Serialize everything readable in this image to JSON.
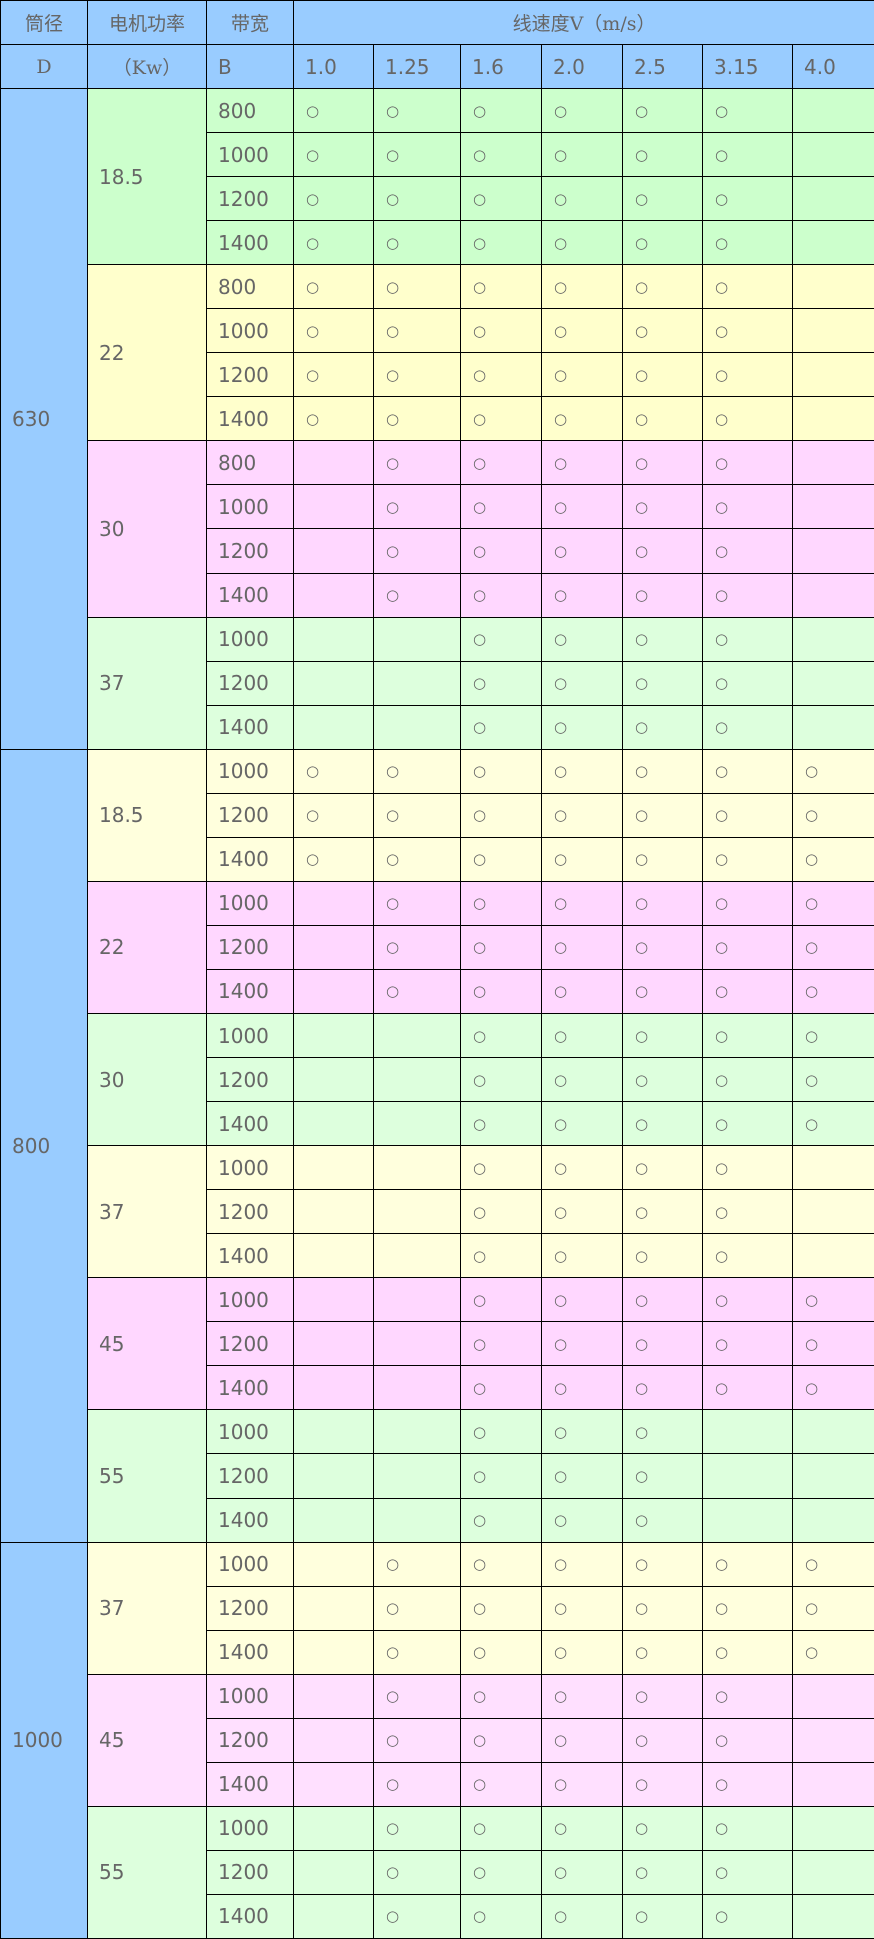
{
  "header": {
    "diameter": [
      "筒径",
      "D"
    ],
    "power": [
      "电机功率",
      "（Kw）"
    ],
    "belt": [
      "带宽",
      "B"
    ],
    "speed_title": "线速度V（m/s）",
    "speeds": [
      "1.0",
      "1.25",
      "1.6",
      "2.0",
      "2.5",
      "3.15",
      "4.0"
    ]
  },
  "mark_symbol": "○",
  "colors": {
    "header": "#99ccff",
    "border": "#000000",
    "text": "#666666"
  },
  "groups": [
    {
      "diameter": "630",
      "motors": [
        {
          "power": "18.5",
          "color": "#ccffcc",
          "belts": [
            "800",
            "1000",
            "1200",
            "1400"
          ],
          "avail": [
            1,
            1,
            1,
            1,
            1,
            1,
            0
          ]
        },
        {
          "power": "22",
          "color": "#ffffcc",
          "belts": [
            "800",
            "1000",
            "1200",
            "1400"
          ],
          "avail": [
            1,
            1,
            1,
            1,
            1,
            1,
            0
          ]
        },
        {
          "power": "30",
          "color": "#ffd7ff",
          "belts": [
            "800",
            "1000",
            "1200",
            "1400"
          ],
          "avail": [
            0,
            1,
            1,
            1,
            1,
            1,
            0
          ]
        },
        {
          "power": "37",
          "color": "#ddffdd",
          "belts": [
            "1000",
            "1200",
            "1400"
          ],
          "avail": [
            0,
            0,
            1,
            1,
            1,
            1,
            0
          ]
        }
      ]
    },
    {
      "diameter": "800",
      "motors": [
        {
          "power": "18.5",
          "color": "#ffffdd",
          "belts": [
            "1000",
            "1200",
            "1400"
          ],
          "avail": [
            1,
            1,
            1,
            1,
            1,
            1,
            1
          ]
        },
        {
          "power": "22",
          "color": "#ffd7ff",
          "belts": [
            "1000",
            "1200",
            "1400"
          ],
          "avail": [
            0,
            1,
            1,
            1,
            1,
            1,
            1
          ]
        },
        {
          "power": "30",
          "color": "#ddffdd",
          "belts": [
            "1000",
            "1200",
            "1400"
          ],
          "avail": [
            0,
            0,
            1,
            1,
            1,
            1,
            1
          ]
        },
        {
          "power": "37",
          "color": "#ffffdd",
          "belts": [
            "1000",
            "1200",
            "1400"
          ],
          "avail": [
            0,
            0,
            1,
            1,
            1,
            1,
            0
          ]
        },
        {
          "power": "45",
          "color": "#ffd7ff",
          "belts": [
            "1000",
            "1200",
            "1400"
          ],
          "avail": [
            0,
            0,
            1,
            1,
            1,
            1,
            1
          ]
        },
        {
          "power": "55",
          "color": "#ddffdd",
          "belts": [
            "1000",
            "1200",
            "1400"
          ],
          "avail": [
            0,
            0,
            1,
            1,
            1,
            0,
            0
          ]
        }
      ]
    },
    {
      "diameter": "1000",
      "motors": [
        {
          "power": "37",
          "color": "#ffffdd",
          "belts": [
            "1000",
            "1200",
            "1400"
          ],
          "avail": [
            0,
            1,
            1,
            1,
            1,
            1,
            1
          ]
        },
        {
          "power": "45",
          "color": "#ffe0ff",
          "belts": [
            "1000",
            "1200",
            "1400"
          ],
          "avail": [
            0,
            1,
            1,
            1,
            1,
            1,
            0
          ]
        },
        {
          "power": "55",
          "color": "#ddffdd",
          "belts": [
            "1000",
            "1200",
            "1400"
          ],
          "avail": [
            0,
            1,
            1,
            1,
            1,
            1,
            0
          ]
        }
      ]
    }
  ]
}
